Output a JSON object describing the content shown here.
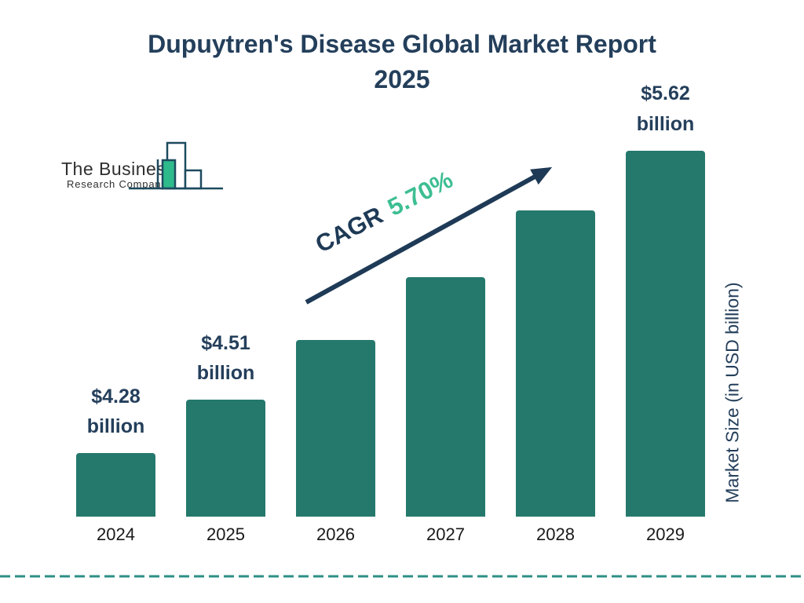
{
  "title": {
    "line1": "Dupuytren's Disease Global Market Report",
    "line2": "2025"
  },
  "logo": {
    "line1": "The Business",
    "line2": "Research Company"
  },
  "cagr": {
    "prefix": "CAGR",
    "value": "5.70%"
  },
  "chart_data": {
    "type": "bar",
    "title": "Dupuytren's Disease Global Market Report 2025",
    "categories": [
      "2024",
      "2025",
      "2026",
      "2027",
      "2028",
      "2029"
    ],
    "values": [
      4.28,
      4.51,
      4.77,
      5.04,
      5.33,
      5.62
    ],
    "value_labels": [
      "$4.28\nbillion",
      "$4.51\nbillion",
      "",
      "",
      "",
      "$5.62\nbillion"
    ],
    "cagr": "5.70%",
    "xlabel": "",
    "ylabel": "Market Size (in USD billion)",
    "legend": "none",
    "grid": false,
    "axis_truncated": true,
    "bar_color": "#24796C"
  },
  "colors": {
    "navy": "#243F5B",
    "bar_teal": "#24796C",
    "accent_green": "#3DBE92",
    "arrow_navy": "#1E3A56",
    "dash_teal": "#2C9085",
    "year_color": "#1A1A1A",
    "logo_ink": "#1D4A5F",
    "logo_green": "#2EBA8B"
  }
}
